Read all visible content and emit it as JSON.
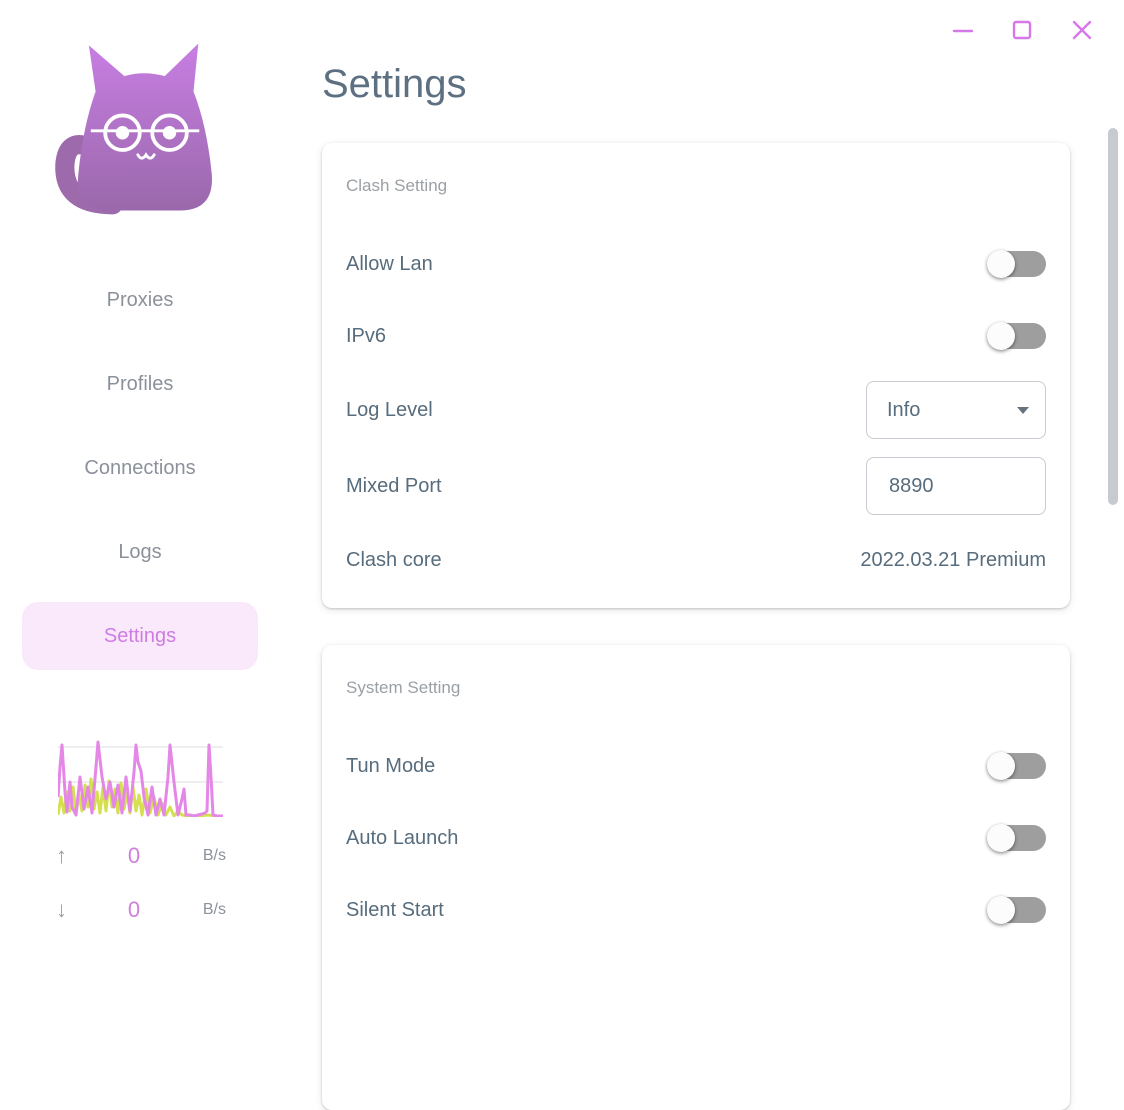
{
  "window": {
    "controls": [
      {
        "name": "minimize",
        "glyph": "minus"
      },
      {
        "name": "maximize",
        "glyph": "square"
      },
      {
        "name": "close",
        "glyph": "x"
      }
    ],
    "control_color": "#d678ea"
  },
  "page": {
    "title": "Settings"
  },
  "sidebar": {
    "logo": "clash-cat-logo",
    "items": [
      {
        "label": "Proxies",
        "active": false
      },
      {
        "label": "Profiles",
        "active": false
      },
      {
        "label": "Connections",
        "active": false
      },
      {
        "label": "Logs",
        "active": false
      },
      {
        "label": "Settings",
        "active": true
      }
    ],
    "traffic": {
      "up": {
        "arrow": "↑",
        "value": "0",
        "unit": "B/s"
      },
      "down": {
        "arrow": "↓",
        "value": "0",
        "unit": "B/s"
      },
      "graph": {
        "up_color": "#e487e6",
        "down_color": "#d5e04e",
        "gridline_color": "#e8e8e8",
        "gridlines_y": [
          10,
          45
        ],
        "up_points": [
          [
            0,
            60
          ],
          [
            2,
            30
          ],
          [
            4,
            8
          ],
          [
            7,
            55
          ],
          [
            9,
            75
          ],
          [
            12,
            45
          ],
          [
            14,
            70
          ],
          [
            18,
            78
          ],
          [
            22,
            40
          ],
          [
            26,
            72
          ],
          [
            30,
            50
          ],
          [
            34,
            76
          ],
          [
            38,
            30
          ],
          [
            40,
            5
          ],
          [
            44,
            40
          ],
          [
            48,
            62
          ],
          [
            52,
            45
          ],
          [
            56,
            70
          ],
          [
            60,
            48
          ],
          [
            64,
            76
          ],
          [
            68,
            40
          ],
          [
            72,
            74
          ],
          [
            76,
            35
          ],
          [
            78,
            8
          ],
          [
            80,
            25
          ],
          [
            83,
            34
          ],
          [
            86,
            60
          ],
          [
            90,
            78
          ],
          [
            94,
            50
          ],
          [
            98,
            78
          ],
          [
            102,
            62
          ],
          [
            106,
            78
          ],
          [
            110,
            40
          ],
          [
            112,
            8
          ],
          [
            116,
            45
          ],
          [
            120,
            78
          ],
          [
            124,
            62
          ],
          [
            126,
            52
          ],
          [
            128,
            78
          ],
          [
            132,
            78
          ],
          [
            136,
            79
          ],
          [
            140,
            78
          ],
          [
            144,
            77
          ],
          [
            147,
            76
          ],
          [
            149,
            74
          ],
          [
            151,
            8
          ],
          [
            153,
            40
          ],
          [
            155,
            78
          ],
          [
            159,
            79
          ],
          [
            162,
            79
          ],
          [
            165,
            79
          ]
        ],
        "down_points": [
          [
            0,
            78
          ],
          [
            3,
            60
          ],
          [
            6,
            76
          ],
          [
            9,
            55
          ],
          [
            12,
            74
          ],
          [
            15,
            50
          ],
          [
            18,
            76
          ],
          [
            21,
            58
          ],
          [
            24,
            74
          ],
          [
            27,
            48
          ],
          [
            30,
            70
          ],
          [
            33,
            42
          ],
          [
            36,
            72
          ],
          [
            39,
            55
          ],
          [
            42,
            76
          ],
          [
            45,
            50
          ],
          [
            48,
            74
          ],
          [
            51,
            44
          ],
          [
            54,
            70
          ],
          [
            57,
            52
          ],
          [
            60,
            76
          ],
          [
            63,
            46
          ],
          [
            66,
            72
          ],
          [
            69,
            56
          ],
          [
            72,
            76
          ],
          [
            75,
            50
          ],
          [
            78,
            74
          ],
          [
            81,
            58
          ],
          [
            84,
            78
          ],
          [
            88,
            52
          ],
          [
            92,
            76
          ],
          [
            96,
            60
          ],
          [
            100,
            78
          ],
          [
            104,
            66
          ],
          [
            108,
            78
          ],
          [
            112,
            70
          ],
          [
            116,
            79
          ],
          [
            120,
            74
          ],
          [
            124,
            78
          ],
          [
            130,
            79
          ],
          [
            140,
            79
          ],
          [
            150,
            78
          ],
          [
            158,
            79
          ],
          [
            165,
            79
          ]
        ]
      }
    }
  },
  "cards": [
    {
      "header": "Clash Setting",
      "rows": [
        {
          "label": "Allow Lan",
          "type": "switch",
          "state": "off"
        },
        {
          "label": "IPv6",
          "type": "switch",
          "state": "off"
        },
        {
          "label": "Log Level",
          "type": "select",
          "value": "Info"
        },
        {
          "label": "Mixed Port",
          "type": "input",
          "value": "8890"
        },
        {
          "label": "Clash core",
          "type": "text",
          "value": "2022.03.21 Premium"
        }
      ]
    },
    {
      "header": "System Setting",
      "rows": [
        {
          "label": "Tun Mode",
          "type": "switch",
          "state": "off"
        },
        {
          "label": "Auto Launch",
          "type": "switch",
          "state": "off"
        },
        {
          "label": "Silent Start",
          "type": "switch",
          "state": "off"
        }
      ]
    }
  ],
  "colors": {
    "accent": "#ce7ce2",
    "active_nav_bg": "#f9e9fb",
    "title_text": "#5d7082",
    "label_text": "#576c7c",
    "muted_text": "#9aa0a5",
    "nav_text": "#8b919b",
    "switch_track_off": "#9e9e9e",
    "logo_gradient_top": "#c87ee3",
    "logo_gradient_bottom": "#9a68ab",
    "scrollbar": "#c7cacf"
  }
}
